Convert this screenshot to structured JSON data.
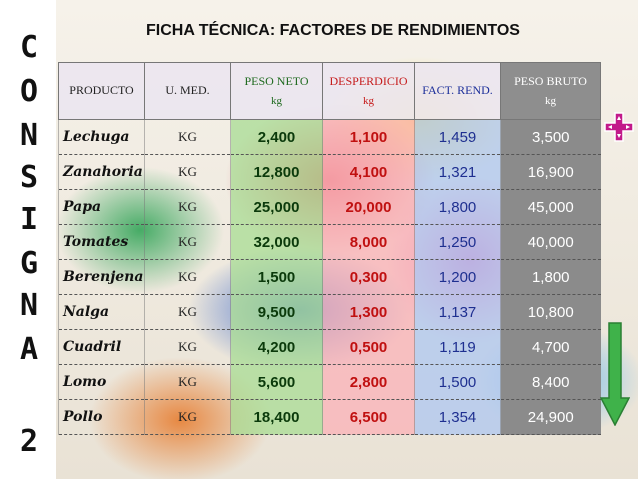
{
  "side_letters": [
    "C",
    "O",
    "N",
    "S",
    "I",
    "G",
    "N",
    "A",
    "2"
  ],
  "title": "FICHA TÉCNICA: FACTORES DE RENDIMIENTOS",
  "headers": {
    "producto": "PRODUCTO",
    "umed": "U. MED.",
    "neto": "PESO NETO",
    "neto_unit": "kg",
    "desperdicio": "DESPERDICIO",
    "desperdicio_unit": "kg",
    "fact": "FACT. REND.",
    "bruto": "PESO BRUTO",
    "bruto_unit": "kg"
  },
  "rows": [
    {
      "producto": "Lechuga",
      "umed": "KG",
      "neto": "2,400",
      "desperdicio": "1,100",
      "fact": "1,459",
      "bruto": "3,500"
    },
    {
      "producto": "Zanahoria",
      "umed": "KG",
      "neto": "12,800",
      "desperdicio": "4,100",
      "fact": "1,321",
      "bruto": "16,900"
    },
    {
      "producto": "Papa",
      "umed": "KG",
      "neto": "25,000",
      "desperdicio": "20,000",
      "fact": "1,800",
      "bruto": "45,000"
    },
    {
      "producto": "Tomates",
      "umed": "KG",
      "neto": "32,000",
      "desperdicio": "8,000",
      "fact": "1,250",
      "bruto": "40,000"
    },
    {
      "producto": "Berenjena",
      "umed": "KG",
      "neto": "1,500",
      "desperdicio": "0,300",
      "fact": "1,200",
      "bruto": "1,800"
    },
    {
      "producto": "Nalga",
      "umed": "KG",
      "neto": "9,500",
      "desperdicio": "1,300",
      "fact": "1,137",
      "bruto": "10,800"
    },
    {
      "producto": "Cuadril",
      "umed": "KG",
      "neto": "4,200",
      "desperdicio": "0,500",
      "fact": "1,119",
      "bruto": "4,700"
    },
    {
      "producto": "Lomo",
      "umed": "KG",
      "neto": "5,600",
      "desperdicio": "2,800",
      "fact": "1,500",
      "bruto": "8,400"
    },
    {
      "producto": "Pollo",
      "umed": "KG",
      "neto": "18,400",
      "desperdicio": "6,500",
      "fact": "1,354",
      "bruto": "24,900"
    }
  ],
  "icons": {
    "plus": "plus-icon",
    "down_arrow": "down-arrow-icon"
  },
  "colors": {
    "plus": "#c2198a",
    "arrow": "#3fb24a",
    "neto_text": "#0b3a0b",
    "desperdicio_text": "#c01010",
    "fact_text": "#1e2f90",
    "bruto_bg": "#8b8b8b"
  }
}
